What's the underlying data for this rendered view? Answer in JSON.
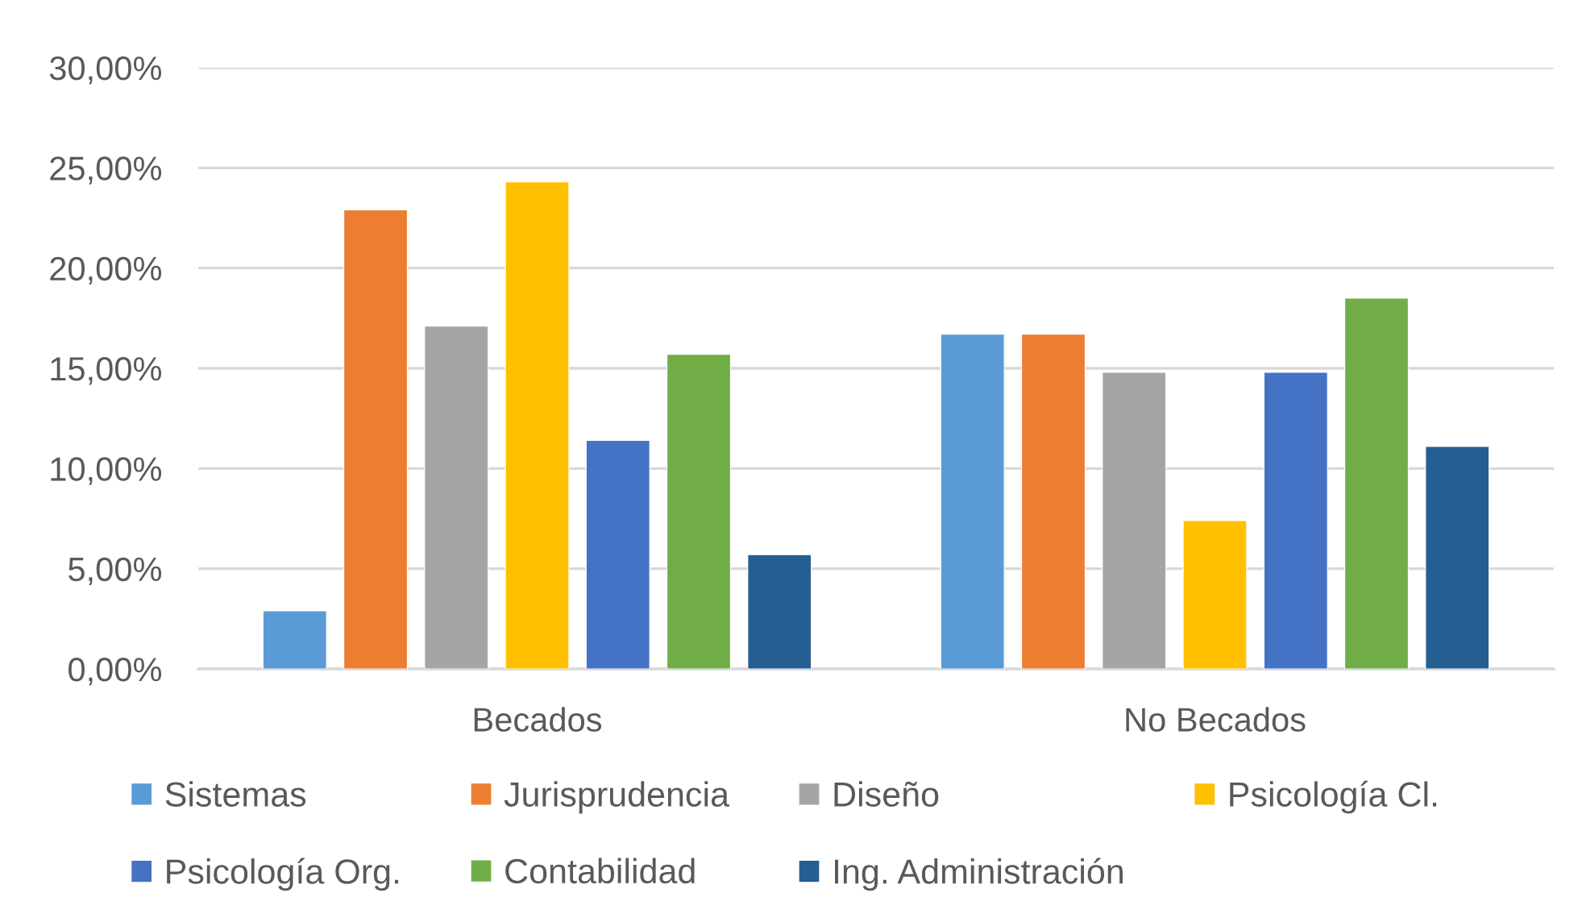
{
  "chart_data": {
    "type": "bar",
    "categories": [
      "Becados",
      "No Becados"
    ],
    "series": [
      {
        "name": "Sistemas",
        "color": "#5b9bd5",
        "values": [
          2.9,
          16.7
        ]
      },
      {
        "name": "Jurisprudencia",
        "color": "#ed7d31",
        "values": [
          22.9,
          16.7
        ]
      },
      {
        "name": "Diseño",
        "color": "#a5a5a5",
        "values": [
          17.1,
          14.8
        ]
      },
      {
        "name": "Psicología Cl.",
        "color": "#ffc000",
        "values": [
          24.3,
          7.4
        ]
      },
      {
        "name": "Psicología Org.",
        "color": "#4472c4",
        "values": [
          11.4,
          14.8
        ]
      },
      {
        "name": "Contabilidad",
        "color": "#70ad47",
        "values": [
          15.7,
          18.5
        ]
      },
      {
        "name": "Ing. Administración",
        "color": "#255e91",
        "values": [
          5.7,
          11.1
        ]
      }
    ],
    "ylim": [
      0,
      30
    ],
    "yticks": [
      {
        "value": 0,
        "label": "0,00%"
      },
      {
        "value": 5,
        "label": "5,00%"
      },
      {
        "value": 10,
        "label": "10,00%"
      },
      {
        "value": 15,
        "label": "15,00%"
      },
      {
        "value": 20,
        "label": "20,00%"
      },
      {
        "value": 25,
        "label": "25,00%"
      },
      {
        "value": 30,
        "label": "30,00%"
      }
    ],
    "grid": "y",
    "legend": "bottom"
  }
}
